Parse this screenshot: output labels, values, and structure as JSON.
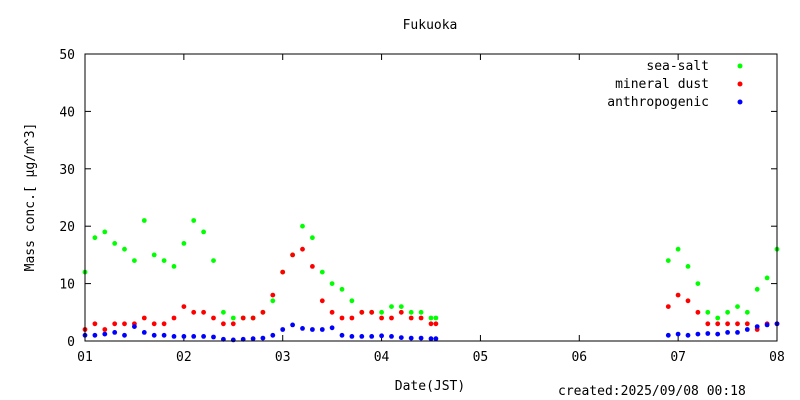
{
  "chart_data": {
    "type": "scatter",
    "title": "Fukuoka",
    "xlabel": "Date(JST)",
    "ylabel": "Mass conc.[ μg/m^3]",
    "xlim": [
      1,
      8
    ],
    "ylim": [
      0,
      50
    ],
    "x_ticks": [
      "01",
      "02",
      "03",
      "04",
      "05",
      "06",
      "07",
      "08"
    ],
    "y_ticks": [
      "0",
      "10",
      "20",
      "30",
      "40",
      "50"
    ],
    "grid": false,
    "legend_position": "top-right",
    "series": [
      {
        "name": "sea-salt",
        "color": "#00ff00",
        "x": [
          1.0,
          1.1,
          1.2,
          1.3,
          1.4,
          1.5,
          1.6,
          1.7,
          1.8,
          1.9,
          2.0,
          2.1,
          2.2,
          2.3,
          2.4,
          2.5,
          2.6,
          2.7,
          2.8,
          2.9,
          3.0,
          3.1,
          3.2,
          3.3,
          3.4,
          3.5,
          3.6,
          3.7,
          3.8,
          3.9,
          4.0,
          4.1,
          4.2,
          4.3,
          4.4,
          4.5,
          4.55,
          6.9,
          7.0,
          7.1,
          7.2,
          7.3,
          7.4,
          7.5,
          7.6,
          7.7,
          7.8,
          7.9,
          8.0
        ],
        "y": [
          12,
          18,
          19,
          17,
          16,
          14,
          21,
          15,
          14,
          13,
          17,
          21,
          19,
          14,
          5,
          4,
          4,
          4,
          5,
          7,
          12,
          15,
          20,
          18,
          12,
          10,
          9,
          7,
          5,
          5,
          5,
          6,
          6,
          5,
          5,
          4,
          4,
          14,
          16,
          13,
          10,
          5,
          4,
          5,
          6,
          5,
          9,
          11,
          16
        ]
      },
      {
        "name": "mineral dust",
        "color": "#ff0000",
        "x": [
          1.0,
          1.1,
          1.2,
          1.3,
          1.4,
          1.5,
          1.6,
          1.7,
          1.8,
          1.9,
          2.0,
          2.1,
          2.2,
          2.3,
          2.4,
          2.5,
          2.6,
          2.7,
          2.8,
          2.9,
          3.0,
          3.1,
          3.2,
          3.3,
          3.4,
          3.5,
          3.6,
          3.7,
          3.8,
          3.9,
          4.0,
          4.1,
          4.2,
          4.3,
          4.4,
          4.5,
          4.55,
          6.9,
          7.0,
          7.1,
          7.2,
          7.3,
          7.4,
          7.5,
          7.6,
          7.7,
          7.8,
          7.9,
          8.0
        ],
        "y": [
          2,
          3,
          2,
          3,
          3,
          3,
          4,
          3,
          3,
          4,
          6,
          5,
          5,
          4,
          3,
          3,
          4,
          4,
          5,
          8,
          12,
          15,
          16,
          13,
          7,
          5,
          4,
          4,
          5,
          5,
          4,
          4,
          5,
          4,
          4,
          3,
          3,
          6,
          8,
          7,
          5,
          3,
          3,
          3,
          3,
          3,
          2,
          3,
          3
        ]
      },
      {
        "name": "anthropogenic",
        "color": "#0000ff",
        "x": [
          1.0,
          1.1,
          1.2,
          1.3,
          1.4,
          1.5,
          1.6,
          1.7,
          1.8,
          1.9,
          2.0,
          2.1,
          2.2,
          2.3,
          2.4,
          2.5,
          2.6,
          2.7,
          2.8,
          2.9,
          3.0,
          3.1,
          3.2,
          3.3,
          3.4,
          3.5,
          3.6,
          3.7,
          3.8,
          3.9,
          4.0,
          4.1,
          4.2,
          4.3,
          4.4,
          4.5,
          4.55,
          6.9,
          7.0,
          7.1,
          7.2,
          7.3,
          7.4,
          7.5,
          7.6,
          7.7,
          7.8,
          7.9,
          8.0
        ],
        "y": [
          1,
          1,
          1.2,
          1.5,
          1,
          2.5,
          1.5,
          1,
          1,
          0.8,
          0.8,
          0.8,
          0.8,
          0.7,
          0.3,
          0.2,
          0.3,
          0.4,
          0.5,
          1,
          2,
          2.8,
          2.2,
          2,
          2,
          2.3,
          1,
          0.8,
          0.8,
          0.8,
          0.9,
          0.8,
          0.6,
          0.5,
          0.5,
          0.4,
          0.4,
          1,
          1.2,
          1,
          1.2,
          1.3,
          1.2,
          1.5,
          1.5,
          2,
          2.5,
          2.8,
          3
        ]
      }
    ]
  },
  "footer": {
    "created": "created:2025/09/08 00:18"
  }
}
